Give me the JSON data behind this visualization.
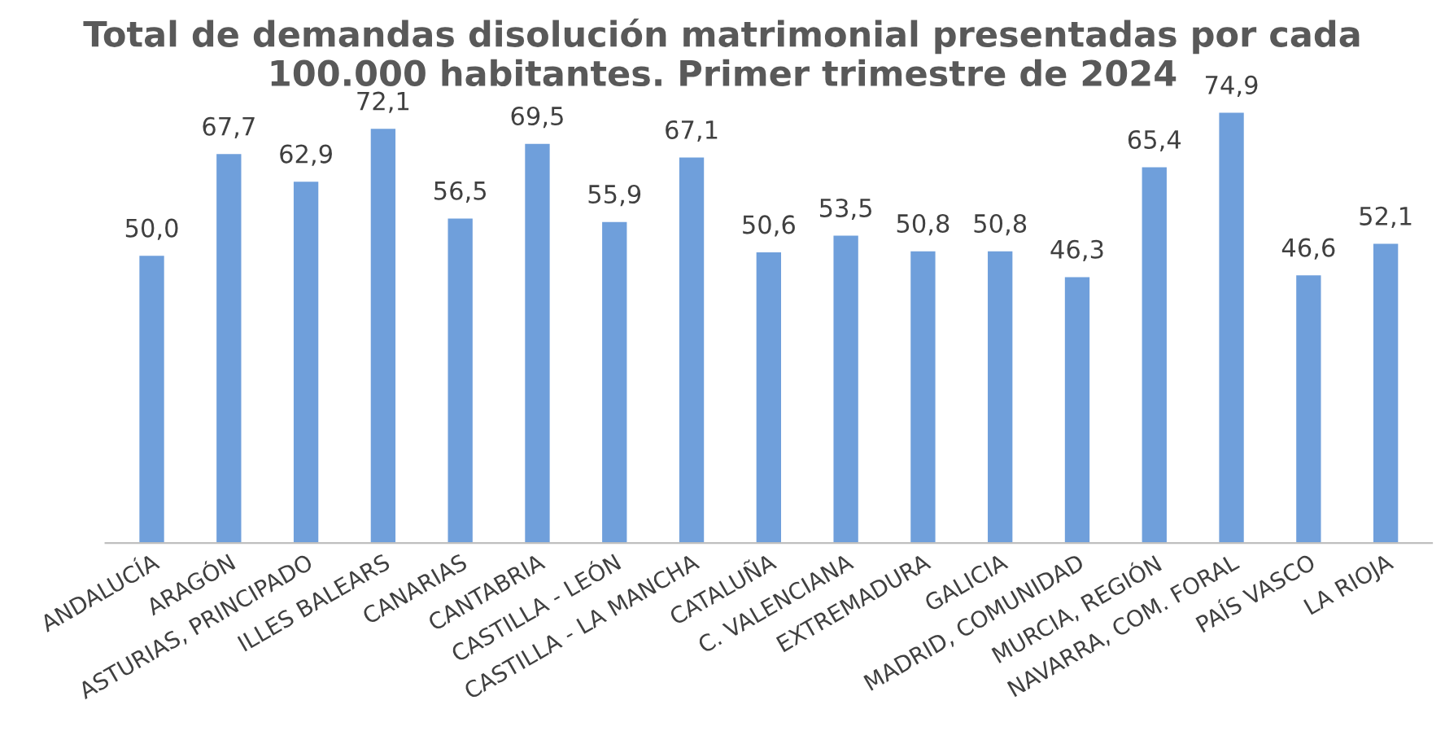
{
  "chart_data": {
    "type": "bar",
    "title": "Total de demandas disolución matrimonial presentadas por cada 100.000 habitantes. Primer trimestre de 2024",
    "categories": [
      "ANDALUCÍA",
      "ARAGÓN",
      "ASTURIAS, PRINCIPADO",
      "ILLES BALEARS",
      "CANARIAS",
      "CANTABRIA",
      "CASTILLA - LEÓN",
      "CASTILLA - LA MANCHA",
      "CATALUÑA",
      "C. VALENCIANA",
      "EXTREMADURA",
      "GALICIA",
      "MADRID, COMUNIDAD",
      "MURCIA, REGIÓN",
      "NAVARRA, COM. FORAL",
      "PAÍS VASCO",
      "LA RIOJA"
    ],
    "values": [
      50.0,
      67.7,
      62.9,
      72.1,
      56.5,
      69.5,
      55.9,
      67.1,
      50.6,
      53.5,
      50.8,
      50.8,
      46.3,
      65.4,
      74.9,
      46.6,
      52.1
    ],
    "value_labels": [
      "50,0",
      "67,7",
      "62,9",
      "72,1",
      "56,5",
      "69,5",
      "55,9",
      "67,1",
      "50,6",
      "53,5",
      "50,8",
      "50,8",
      "46,3",
      "65,4",
      "74,9",
      "46,6",
      "52,1"
    ],
    "color": "#6f9fdb",
    "grid": false,
    "legend": false
  }
}
